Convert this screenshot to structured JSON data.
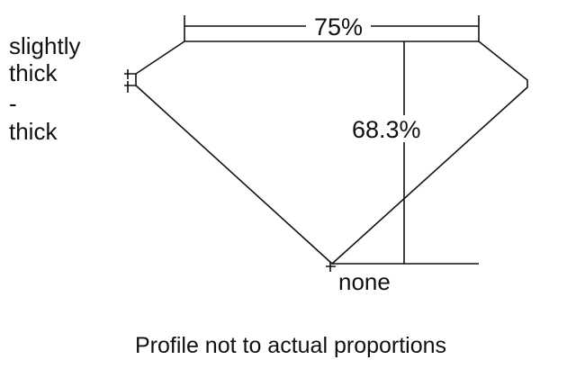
{
  "labels": {
    "girdle_line1": "slightly",
    "girdle_line2": "thick",
    "girdle_line3": "-",
    "girdle_line4": "thick",
    "table_width": "75%",
    "total_depth": "68.3%",
    "culet": "none",
    "caption": "Profile not to actual proportions"
  },
  "colors": {
    "line": "#111111",
    "background": "#ffffff"
  }
}
